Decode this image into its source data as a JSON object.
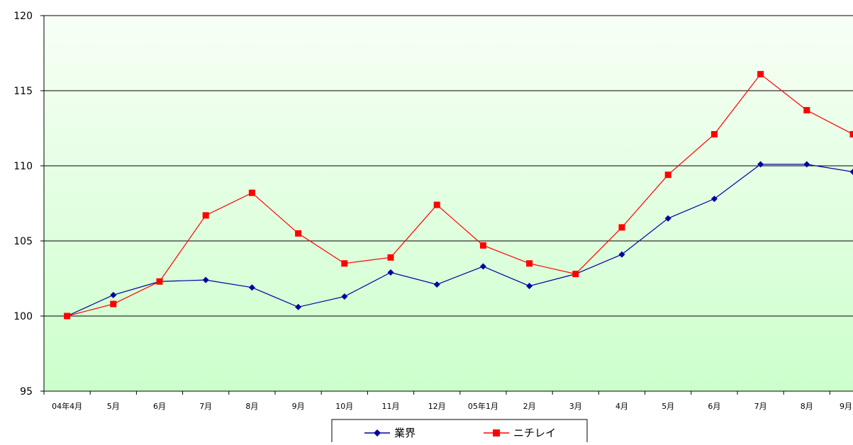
{
  "chart_data": {
    "type": "line",
    "categories": [
      "04年4月",
      "5月",
      "6月",
      "7月",
      "8月",
      "9月",
      "10月",
      "11月",
      "12月",
      "05年1月",
      "2月",
      "3月",
      "4月",
      "5月",
      "6月",
      "7月",
      "8月",
      "9月"
    ],
    "series": [
      {
        "name": "業界",
        "color": "#0000a0",
        "marker": "diamond",
        "values": [
          100.0,
          101.4,
          102.3,
          102.4,
          101.9,
          100.6,
          101.3,
          102.9,
          102.1,
          103.3,
          102.0,
          102.8,
          104.1,
          106.5,
          107.8,
          110.1,
          110.1,
          109.6
        ]
      },
      {
        "name": "ニチレイ",
        "color": "#ff0000",
        "marker": "square",
        "values": [
          100.0,
          100.8,
          102.3,
          106.7,
          108.2,
          105.5,
          103.5,
          103.9,
          107.4,
          104.7,
          103.5,
          102.8,
          105.9,
          109.4,
          112.1,
          116.1,
          113.7,
          112.1
        ]
      }
    ],
    "ylim": [
      95,
      120
    ],
    "yticks": [
      "95",
      "100",
      "105",
      "110",
      "115",
      "120"
    ],
    "grid": true,
    "legend_position": "bottom-center",
    "colors": {
      "background_top": "#f8fff6",
      "background_bottom": "#ccffcc"
    }
  }
}
